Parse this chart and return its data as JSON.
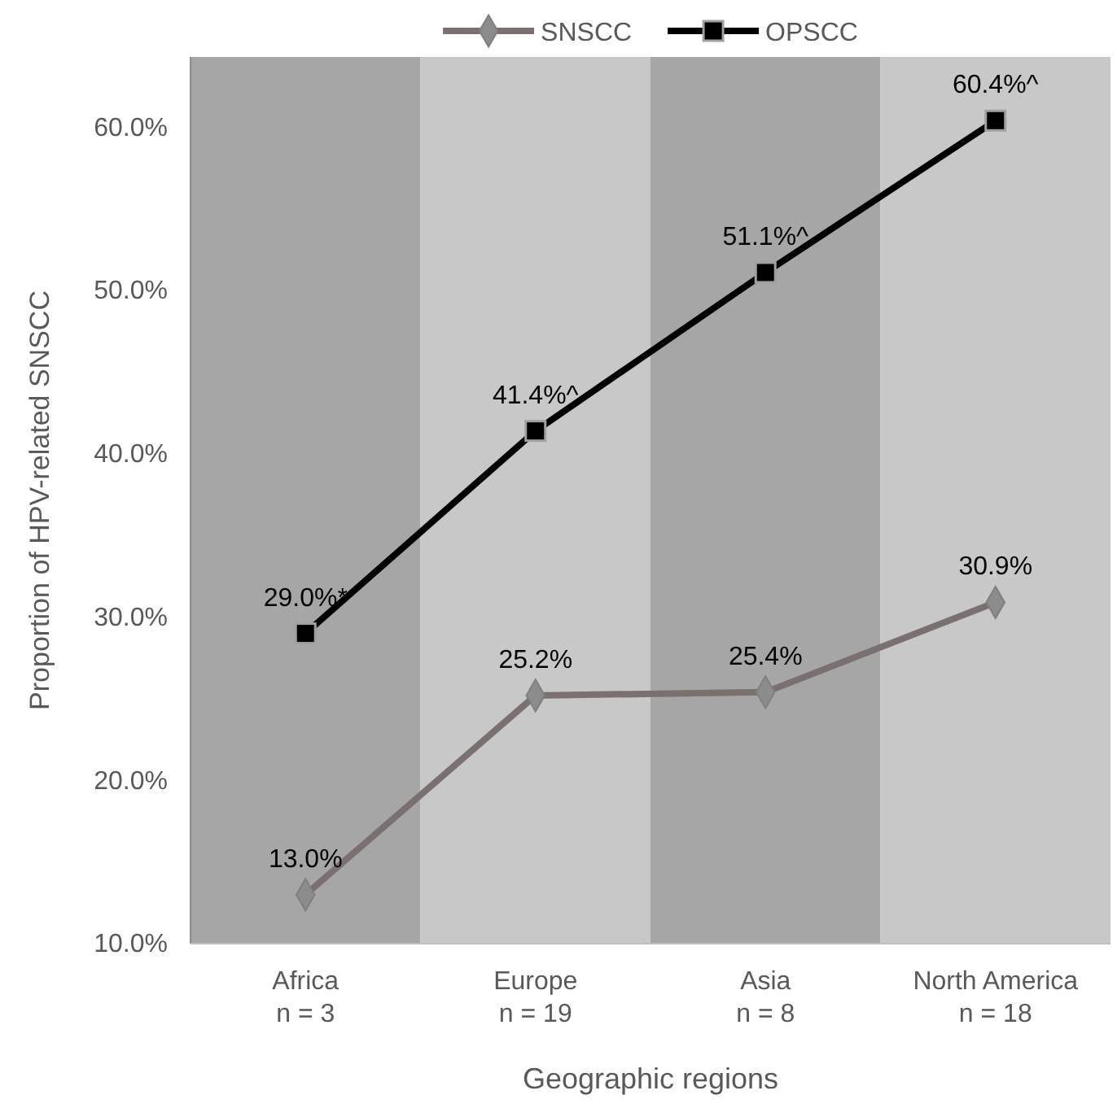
{
  "chart_data": {
    "type": "line",
    "xlabel": "Geographic regions",
    "ylabel": "Proportion of HPV-related SNSCC",
    "categories": [
      "Africa\nn = 3",
      "Europe\nn = 19",
      "Asia\nn = 8",
      "North America\nn = 18"
    ],
    "series": [
      {
        "name": "SNSCC",
        "color": "#7a7070",
        "marker": "diamond",
        "values": [
          13.0,
          25.2,
          25.4,
          30.9
        ],
        "value_labels": [
          "13.0%",
          "25.2%",
          "25.4%",
          "30.9%"
        ]
      },
      {
        "name": "OPSCC",
        "color": "#000000",
        "marker": "square",
        "values": [
          29.0,
          41.4,
          51.1,
          60.4
        ],
        "value_labels": [
          "29.0%*",
          "41.4%^",
          "51.1%^",
          "60.4%^"
        ]
      }
    ],
    "ylim": [
      10,
      64.3
    ],
    "yticks": [
      {
        "value": 10,
        "label": "10.0%"
      },
      {
        "value": 20,
        "label": "20.0%"
      },
      {
        "value": 30,
        "label": "30.0%"
      },
      {
        "value": 40,
        "label": "40.0%"
      },
      {
        "value": 50,
        "label": "50.0%"
      },
      {
        "value": 60,
        "label": "60.0%"
      }
    ],
    "bands": [
      {
        "axis": "x",
        "from": "Africa\nn = 3",
        "to": "Africa\nn = 3",
        "color": "#a6a6a6"
      },
      {
        "axis": "x",
        "from": "Europe\nn = 19",
        "to": "Europe\nn = 19",
        "color": "#c8c8c8"
      },
      {
        "axis": "x",
        "from": "Asia\nn = 8",
        "to": "Asia\nn = 8",
        "color": "#a6a6a6"
      },
      {
        "axis": "x",
        "from": "North America\nn = 18",
        "to": "North America\nn = 18",
        "color": "#c8c8c8"
      }
    ],
    "legend": "top",
    "grid": false
  }
}
